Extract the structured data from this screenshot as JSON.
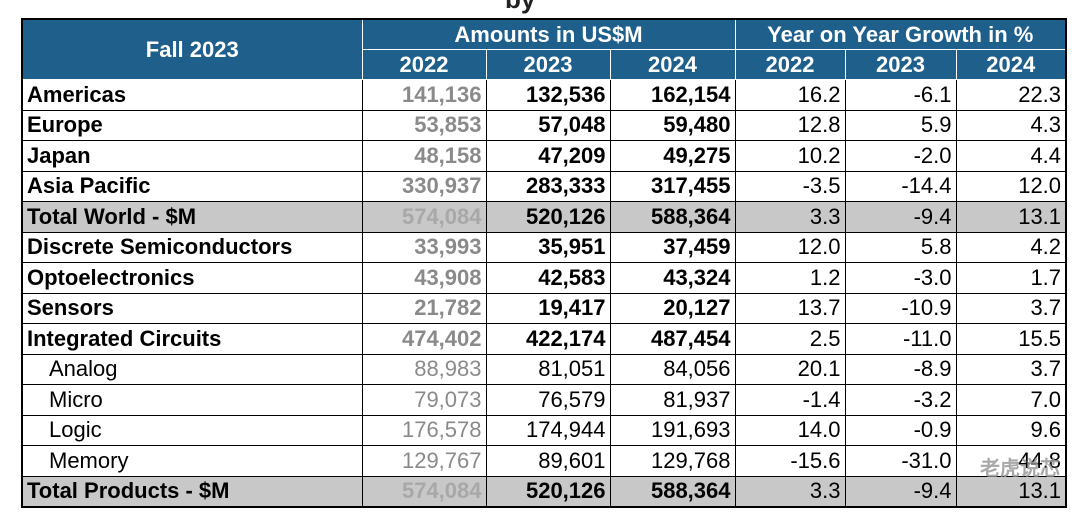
{
  "table": {
    "corner_label": "Fall 2023",
    "group_amounts": "Amounts in US$M",
    "group_growth": "Year on Year Growth in %",
    "year_headers": [
      "2022",
      "2023",
      "2024",
      "2022",
      "2023",
      "2024"
    ],
    "rows": [
      {
        "label": "Americas",
        "amt_2022": "141,136",
        "amt_2023": "132,536",
        "amt_2024": "162,154",
        "g_2022": "16.2",
        "g_2023": "-6.1",
        "g_2024": "22.3",
        "style": "bold"
      },
      {
        "label": "Europe",
        "amt_2022": "53,853",
        "amt_2023": "57,048",
        "amt_2024": "59,480",
        "g_2022": "12.8",
        "g_2023": "5.9",
        "g_2024": "4.3",
        "style": "bold"
      },
      {
        "label": "Japan",
        "amt_2022": "48,158",
        "amt_2023": "47,209",
        "amt_2024": "49,275",
        "g_2022": "10.2",
        "g_2023": "-2.0",
        "g_2024": "4.4",
        "style": "bold"
      },
      {
        "label": "Asia Pacific",
        "amt_2022": "330,937",
        "amt_2023": "283,333",
        "amt_2024": "317,455",
        "g_2022": "-3.5",
        "g_2023": "-14.4",
        "g_2024": "12.0",
        "style": "bold"
      },
      {
        "label": "Total World - $M",
        "amt_2022": "574,084",
        "amt_2023": "520,126",
        "amt_2024": "588,364",
        "g_2022": "3.3",
        "g_2023": "-9.4",
        "g_2024": "13.1",
        "style": "total"
      },
      {
        "label": "Discrete Semiconductors",
        "amt_2022": "33,993",
        "amt_2023": "35,951",
        "amt_2024": "37,459",
        "g_2022": "12.0",
        "g_2023": "5.8",
        "g_2024": "4.2",
        "style": "bold"
      },
      {
        "label": "Optoelectronics",
        "amt_2022": "43,908",
        "amt_2023": "42,583",
        "amt_2024": "43,324",
        "g_2022": "1.2",
        "g_2023": "-3.0",
        "g_2024": "1.7",
        "style": "bold"
      },
      {
        "label": "Sensors",
        "amt_2022": "21,782",
        "amt_2023": "19,417",
        "amt_2024": "20,127",
        "g_2022": "13.7",
        "g_2023": "-10.9",
        "g_2024": "3.7",
        "style": "bold"
      },
      {
        "label": "Integrated Circuits",
        "amt_2022": "474,402",
        "amt_2023": "422,174",
        "amt_2024": "487,454",
        "g_2022": "2.5",
        "g_2023": "-11.0",
        "g_2024": "15.5",
        "style": "bold"
      },
      {
        "label": "Analog",
        "amt_2022": "88,983",
        "amt_2023": "81,051",
        "amt_2024": "84,056",
        "g_2022": "20.1",
        "g_2023": "-8.9",
        "g_2024": "3.7",
        "style": "sub"
      },
      {
        "label": "Micro",
        "amt_2022": "79,073",
        "amt_2023": "76,579",
        "amt_2024": "81,937",
        "g_2022": "-1.4",
        "g_2023": "-3.2",
        "g_2024": "7.0",
        "style": "sub"
      },
      {
        "label": "Logic",
        "amt_2022": "176,578",
        "amt_2023": "174,944",
        "amt_2024": "191,693",
        "g_2022": "14.0",
        "g_2023": "-0.9",
        "g_2024": "9.6",
        "style": "sub"
      },
      {
        "label": "Memory",
        "amt_2022": "129,767",
        "amt_2023": "89,601",
        "amt_2024": "129,768",
        "g_2022": "-15.6",
        "g_2023": "-31.0",
        "g_2024": "44.8",
        "style": "sub"
      },
      {
        "label": "Total Products - $M",
        "amt_2022": "574,084",
        "amt_2023": "520,126",
        "amt_2024": "588,364",
        "g_2022": "3.3",
        "g_2023": "-9.4",
        "g_2024": "13.1",
        "style": "total"
      }
    ]
  },
  "watermark": "老虎说芯",
  "colors": {
    "header_bg": "#1f5f8b",
    "total_row_bg": "#c8c8c8",
    "prior_year_text": "#8a8a8a"
  }
}
